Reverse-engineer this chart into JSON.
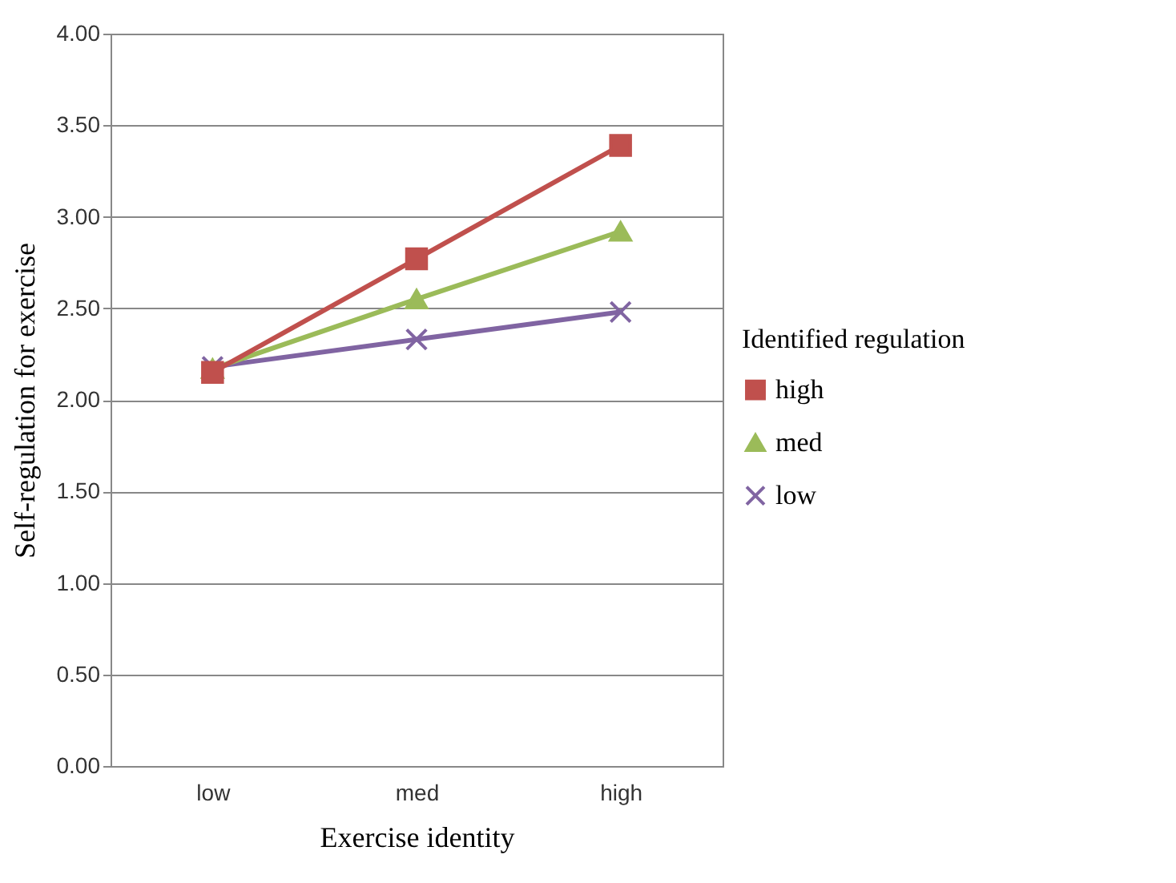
{
  "chart_data": {
    "type": "line",
    "xlabel": "Exercise identity",
    "ylabel": "Self-regulation for exercise",
    "legend_title": "Identified regulation",
    "categories": [
      "low",
      "med",
      "high"
    ],
    "series": [
      {
        "name": "high",
        "color": "#c0504d",
        "marker": "square",
        "values": [
          2.15,
          2.77,
          3.39
        ]
      },
      {
        "name": "med",
        "color": "#9bbb59",
        "marker": "triangle",
        "values": [
          2.17,
          2.55,
          2.92
        ]
      },
      {
        "name": "low",
        "color": "#8064a2",
        "marker": "cross",
        "values": [
          2.18,
          2.33,
          2.48
        ]
      }
    ],
    "ylim": [
      0,
      4
    ],
    "yticks": [
      {
        "value": 0,
        "label": "0.00"
      },
      {
        "value": 0.5,
        "label": "0.50"
      },
      {
        "value": 1,
        "label": "1.00"
      },
      {
        "value": 1.5,
        "label": "1.50"
      },
      {
        "value": 2,
        "label": "2.00"
      },
      {
        "value": 2.5,
        "label": "2.50"
      },
      {
        "value": 3,
        "label": "3.00"
      },
      {
        "value": 3.5,
        "label": "3.50"
      },
      {
        "value": 4,
        "label": "4.00"
      }
    ],
    "grid": "y",
    "legend": "right",
    "line_style": "solid"
  }
}
